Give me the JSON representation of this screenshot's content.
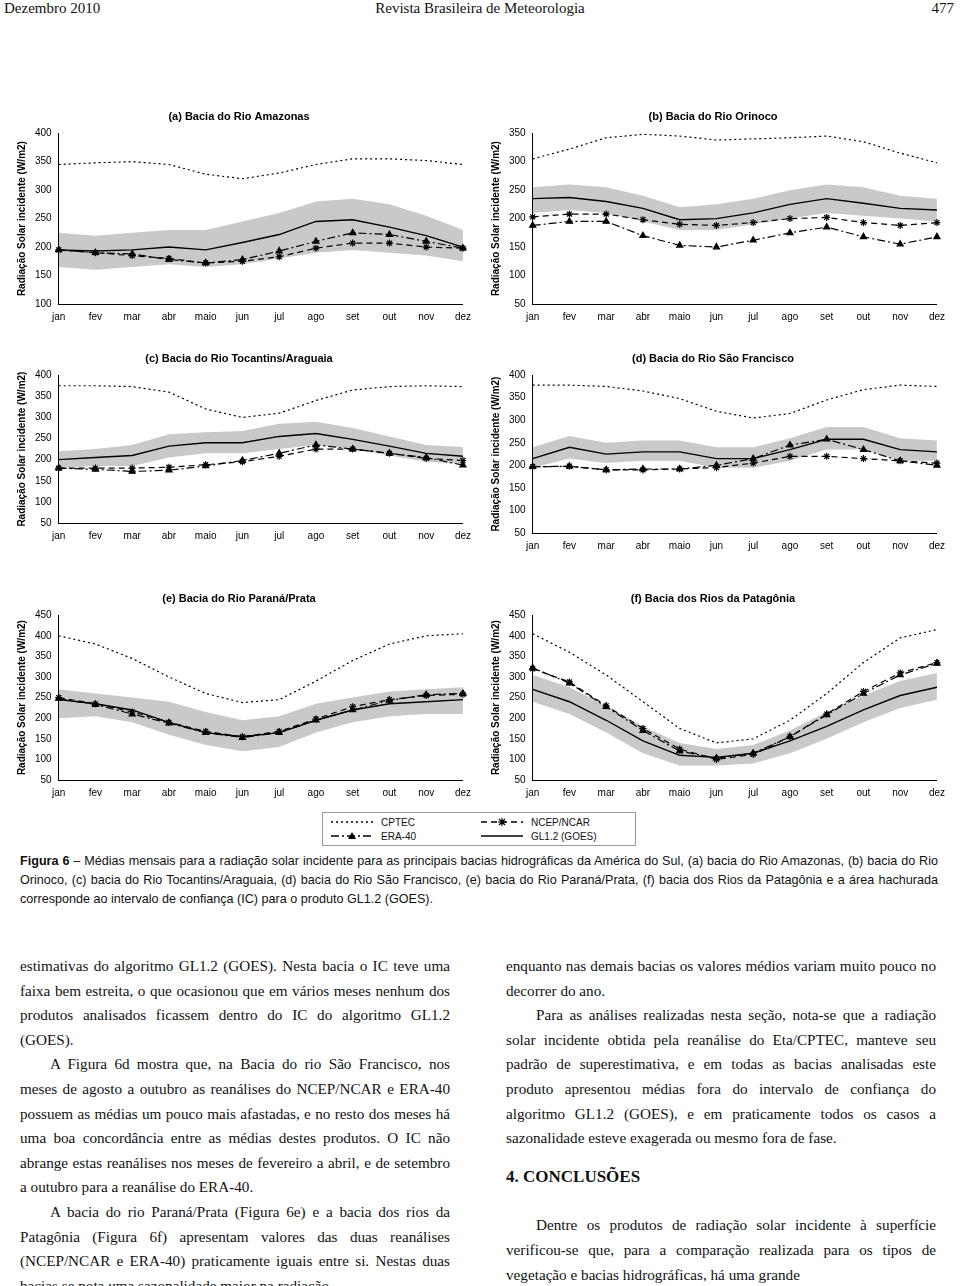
{
  "header": {
    "left": "Dezembro 2010",
    "center": "Revista Brasileira de Meteorologia",
    "right": "477"
  },
  "chart_data": [
    {
      "type": "line",
      "title": "(a) Bacia do Rio Amazonas",
      "y_label": "Radiação Solar incidente (W/m2)",
      "grid": false,
      "categories": [
        "jan",
        "fev",
        "mar",
        "abr",
        "maio",
        "jun",
        "jul",
        "ago",
        "set",
        "out",
        "nov",
        "dez"
      ],
      "ylim": [
        100,
        400
      ],
      "yticks": [
        100,
        150,
        200,
        250,
        300,
        350,
        400
      ],
      "confidence_interval": {
        "lower": [
          165,
          160,
          165,
          170,
          165,
          170,
          180,
          190,
          195,
          190,
          185,
          175
        ],
        "upper": [
          225,
          220,
          225,
          230,
          230,
          245,
          260,
          280,
          285,
          275,
          255,
          230
        ]
      },
      "series": [
        {
          "name": "CPTEC",
          "color": "#000000",
          "line_style": "dotted",
          "marker": "none",
          "values": [
            345,
            348,
            350,
            345,
            328,
            320,
            330,
            345,
            355,
            355,
            352,
            345
          ]
        },
        {
          "name": "NCEP/NCAR",
          "color": "#000000",
          "line_style": "dashed",
          "marker": "star",
          "values": [
            195,
            190,
            185,
            180,
            172,
            175,
            183,
            198,
            207,
            207,
            200,
            198
          ]
        },
        {
          "name": "ERA-40",
          "color": "#000000",
          "line_style": "dashdot",
          "marker": "triangle",
          "values": [
            195,
            190,
            188,
            178,
            172,
            178,
            193,
            210,
            225,
            222,
            210,
            198
          ]
        },
        {
          "name": "GL1.2 (GOES)",
          "color": "#000000",
          "line_style": "solid",
          "marker": "none",
          "values": [
            195,
            193,
            195,
            200,
            195,
            208,
            222,
            245,
            248,
            235,
            220,
            200
          ]
        }
      ]
    },
    {
      "type": "line",
      "title": "(b) Bacia do Rio Orinoco",
      "y_label": "Radiação Solar incidente (W/m2)",
      "grid": false,
      "categories": [
        "jan",
        "fev",
        "mar",
        "abr",
        "maio",
        "jun",
        "jul",
        "ago",
        "set",
        "out",
        "nov",
        "dez"
      ],
      "ylim": [
        50,
        350
      ],
      "yticks": [
        50,
        100,
        150,
        200,
        250,
        300,
        350
      ],
      "confidence_interval": {
        "lower": [
          210,
          215,
          210,
          195,
          180,
          180,
          190,
          200,
          210,
          205,
          200,
          195
        ],
        "upper": [
          255,
          260,
          255,
          240,
          220,
          225,
          235,
          250,
          260,
          255,
          240,
          235
        ]
      },
      "series": [
        {
          "name": "CPTEC",
          "color": "#000000",
          "line_style": "dotted",
          "marker": "none",
          "values": [
            305,
            322,
            342,
            348,
            345,
            338,
            340,
            342,
            345,
            335,
            315,
            298
          ]
        },
        {
          "name": "NCEP/NCAR",
          "color": "#000000",
          "line_style": "dashed",
          "marker": "star",
          "values": [
            203,
            208,
            208,
            198,
            190,
            188,
            193,
            200,
            202,
            193,
            188,
            193
          ]
        },
        {
          "name": "ERA-40",
          "color": "#000000",
          "line_style": "dashdot",
          "marker": "triangle",
          "values": [
            188,
            195,
            195,
            170,
            153,
            150,
            162,
            175,
            185,
            168,
            155,
            168
          ]
        },
        {
          "name": "GL1.2 (GOES)",
          "color": "#000000",
          "line_style": "solid",
          "marker": "none",
          "values": [
            235,
            237,
            230,
            218,
            198,
            200,
            210,
            225,
            235,
            227,
            218,
            215
          ]
        }
      ]
    },
    {
      "type": "line",
      "title": "(c) Bacia do Rio Tocantins/Araguaia",
      "y_label": "Radiação Solar incidente (W/m2)",
      "grid": false,
      "categories": [
        "jan",
        "fev",
        "mar",
        "abr",
        "maio",
        "jun",
        "jul",
        "ago",
        "set",
        "out",
        "nov",
        "dez"
      ],
      "ylim": [
        50,
        400
      ],
      "yticks": [
        50,
        100,
        150,
        200,
        250,
        300,
        350,
        400
      ],
      "confidence_interval": {
        "lower": [
          180,
          185,
          185,
          205,
          215,
          215,
          225,
          235,
          225,
          210,
          195,
          190
        ],
        "upper": [
          220,
          225,
          235,
          260,
          265,
          268,
          285,
          290,
          275,
          255,
          235,
          230
        ]
      },
      "series": [
        {
          "name": "CPTEC",
          "color": "#000000",
          "line_style": "dotted",
          "marker": "none",
          "values": [
            375,
            375,
            373,
            360,
            320,
            300,
            310,
            340,
            365,
            373,
            375,
            373
          ]
        },
        {
          "name": "NCEP/NCAR",
          "color": "#000000",
          "line_style": "dashed",
          "marker": "star",
          "values": [
            180,
            180,
            180,
            182,
            188,
            195,
            208,
            225,
            225,
            215,
            203,
            198
          ]
        },
        {
          "name": "ERA-40",
          "color": "#000000",
          "line_style": "dashdot",
          "marker": "triangle",
          "values": [
            180,
            177,
            172,
            175,
            185,
            198,
            215,
            235,
            225,
            215,
            205,
            187
          ]
        },
        {
          "name": "GL1.2 (GOES)",
          "color": "#000000",
          "line_style": "solid",
          "marker": "none",
          "values": [
            200,
            205,
            210,
            232,
            240,
            240,
            255,
            262,
            248,
            232,
            215,
            208
          ]
        }
      ]
    },
    {
      "type": "line",
      "title": "(d) Bacia do Rio São Francisco",
      "y_label": "Radiação Solar incidente (W/m2)",
      "grid": false,
      "categories": [
        "jan",
        "fev",
        "mar",
        "abr",
        "maio",
        "jun",
        "jul",
        "ago",
        "set",
        "out",
        "nov",
        "dez"
      ],
      "ylim": [
        50,
        400
      ],
      "yticks": [
        50,
        100,
        150,
        200,
        250,
        300,
        350,
        400
      ],
      "confidence_interval": {
        "lower": [
          195,
          215,
          205,
          210,
          210,
          195,
          195,
          210,
          235,
          235,
          210,
          210
        ],
        "upper": [
          240,
          265,
          250,
          255,
          255,
          240,
          240,
          260,
          285,
          285,
          260,
          255
        ]
      },
      "series": [
        {
          "name": "CPTEC",
          "color": "#000000",
          "line_style": "dotted",
          "marker": "none",
          "values": [
            378,
            378,
            375,
            365,
            348,
            320,
            305,
            315,
            345,
            368,
            378,
            375
          ]
        },
        {
          "name": "NCEP/NCAR",
          "color": "#000000",
          "line_style": "dashed",
          "marker": "star",
          "values": [
            197,
            198,
            190,
            190,
            192,
            195,
            205,
            220,
            220,
            215,
            210,
            205
          ]
        },
        {
          "name": "ERA-40",
          "color": "#000000",
          "line_style": "dashdot",
          "marker": "triangle",
          "values": [
            197,
            198,
            190,
            192,
            192,
            200,
            215,
            245,
            258,
            235,
            210,
            200
          ]
        },
        {
          "name": "GL1.2 (GOES)",
          "color": "#000000",
          "line_style": "solid",
          "marker": "none",
          "values": [
            215,
            240,
            225,
            230,
            230,
            215,
            215,
            235,
            258,
            258,
            235,
            230
          ]
        }
      ]
    },
    {
      "type": "line",
      "title": "(e) Bacia do Rio Paraná/Prata",
      "y_label": "Radiação Solar incidente (W/m2)",
      "grid": false,
      "categories": [
        "jan",
        "fev",
        "mar",
        "abr",
        "maio",
        "jun",
        "jul",
        "ago",
        "set",
        "out",
        "nov",
        "dez"
      ],
      "ylim": [
        50,
        450
      ],
      "yticks": [
        50,
        100,
        150,
        200,
        250,
        300,
        350,
        400,
        450
      ],
      "confidence_interval": {
        "lower": [
          200,
          205,
          190,
          160,
          135,
          120,
          130,
          165,
          190,
          205,
          210,
          210
        ],
        "upper": [
          270,
          260,
          250,
          240,
          215,
          195,
          205,
          235,
          250,
          265,
          270,
          275
        ]
      },
      "series": [
        {
          "name": "CPTEC",
          "color": "#000000",
          "line_style": "dotted",
          "marker": "none",
          "values": [
            400,
            380,
            345,
            300,
            260,
            238,
            245,
            290,
            340,
            380,
            400,
            405
          ]
        },
        {
          "name": "NCEP/NCAR",
          "color": "#000000",
          "line_style": "dashed",
          "marker": "star",
          "values": [
            250,
            235,
            215,
            190,
            168,
            155,
            168,
            198,
            228,
            245,
            255,
            258
          ]
        },
        {
          "name": "ERA-40",
          "color": "#000000",
          "line_style": "dashdot",
          "marker": "triangle",
          "values": [
            248,
            233,
            210,
            188,
            165,
            153,
            165,
            195,
            220,
            243,
            257,
            260
          ]
        },
        {
          "name": "GL1.2 (GOES)",
          "color": "#000000",
          "line_style": "solid",
          "marker": "none",
          "values": [
            245,
            235,
            220,
            190,
            165,
            155,
            165,
            195,
            220,
            235,
            240,
            245
          ]
        }
      ]
    },
    {
      "type": "line",
      "title": "(f) Bacia dos Rios da Patagônia",
      "y_label": "Radiação Solar incidente (W/m2)",
      "grid": false,
      "categories": [
        "jan",
        "fev",
        "mar",
        "abr",
        "maio",
        "jun",
        "jul",
        "ago",
        "set",
        "out",
        "nov",
        "dez"
      ],
      "ylim": [
        50,
        450
      ],
      "yticks": [
        50,
        100,
        150,
        200,
        250,
        300,
        350,
        400,
        450
      ],
      "confidence_interval": {
        "lower": [
          240,
          210,
          165,
          115,
          85,
          85,
          90,
          115,
          150,
          190,
          225,
          245
        ],
        "upper": [
          305,
          275,
          230,
          180,
          140,
          125,
          135,
          170,
          215,
          255,
          290,
          310
        ]
      },
      "series": [
        {
          "name": "CPTEC",
          "color": "#000000",
          "line_style": "dotted",
          "marker": "none",
          "values": [
            405,
            360,
            305,
            240,
            175,
            140,
            150,
            195,
            260,
            335,
            395,
            415
          ]
        },
        {
          "name": "NCEP/NCAR",
          "color": "#000000",
          "line_style": "dashed",
          "marker": "star",
          "values": [
            320,
            288,
            230,
            175,
            125,
            100,
            112,
            155,
            210,
            265,
            310,
            335
          ]
        },
        {
          "name": "ERA-40",
          "color": "#000000",
          "line_style": "dashdot",
          "marker": "triangle",
          "values": [
            322,
            285,
            228,
            170,
            120,
            103,
            115,
            155,
            208,
            260,
            305,
            333
          ]
        },
        {
          "name": "GL1.2 (GOES)",
          "color": "#000000",
          "line_style": "solid",
          "marker": "none",
          "values": [
            270,
            240,
            195,
            145,
            110,
            105,
            115,
            145,
            180,
            220,
            255,
            275
          ]
        }
      ]
    }
  ],
  "caption": {
    "label": "Figura 6",
    "text": "– Médias mensais para a radiação solar incidente para as principais bacias hidrográficas da América do Sul, (a) bacia do Rio Amazonas, (b) bacia do Rio Orinoco, (c) bacia do Rio Tocantins/Araguaia, (d) bacia do Rio São Francisco, (e) bacia do Rio Paraná/Prata, (f) bacia dos Rios da Patagônia e a área hachurada corresponde ao intervalo de confiança (IC) para o produto GL1.2 (GOES)."
  },
  "text": {
    "left_column": [
      "estimativas do algoritmo GL1.2 (GOES). Nesta bacia o IC teve uma faixa bem estreita, o que ocasionou que em vários meses nenhum dos produtos analisados ficassem dentro do IC do algoritmo GL1.2 (GOES).",
      "A Figura 6d mostra que, na Bacia do rio São Francisco, nos meses de agosto a outubro as reanálises do NCEP/NCAR e ERA-40 possuem as médias um pouco mais afastadas, e no resto dos meses há uma boa concordância entre as médias destes produtos. O IC não abrange estas reanálises nos meses de fevereiro a abril, e de setembro a outubro para a reanálise do ERA-40.",
      "A bacia do rio Paraná/Prata (Figura 6e) e a bacia dos rios da Patagônia (Figura 6f) apresentam valores das duas reanálises (NCEP/NCAR e ERA-40) praticamente iguais entre si. Nestas duas bacias se nota uma sazonalidade maior na radiação,"
    ],
    "right_column": [
      "enquanto nas demais bacias os valores médios variam muito pouco no decorrer do ano.",
      "Para as análises realizadas nesta seção, nota-se que a radiação solar incidente obtida pela reanálise do Eta/CPTEC, manteve seu padrão de superestimativa, e em todas as bacias analisadas este produto apresentou médias fora do intervalo de confiança do algoritmo GL1.2 (GOES), e em praticamente todos os casos a sazonalidade esteve exagerada ou mesmo fora de fase."
    ],
    "section_heading": "4. CONCLUSÕES",
    "section_text": "Dentre os produtos de radiação solar incidente à superfície verificou-se que, para a comparação realizada para os tipos de vegetação e bacias hidrográficas, há uma grande"
  }
}
